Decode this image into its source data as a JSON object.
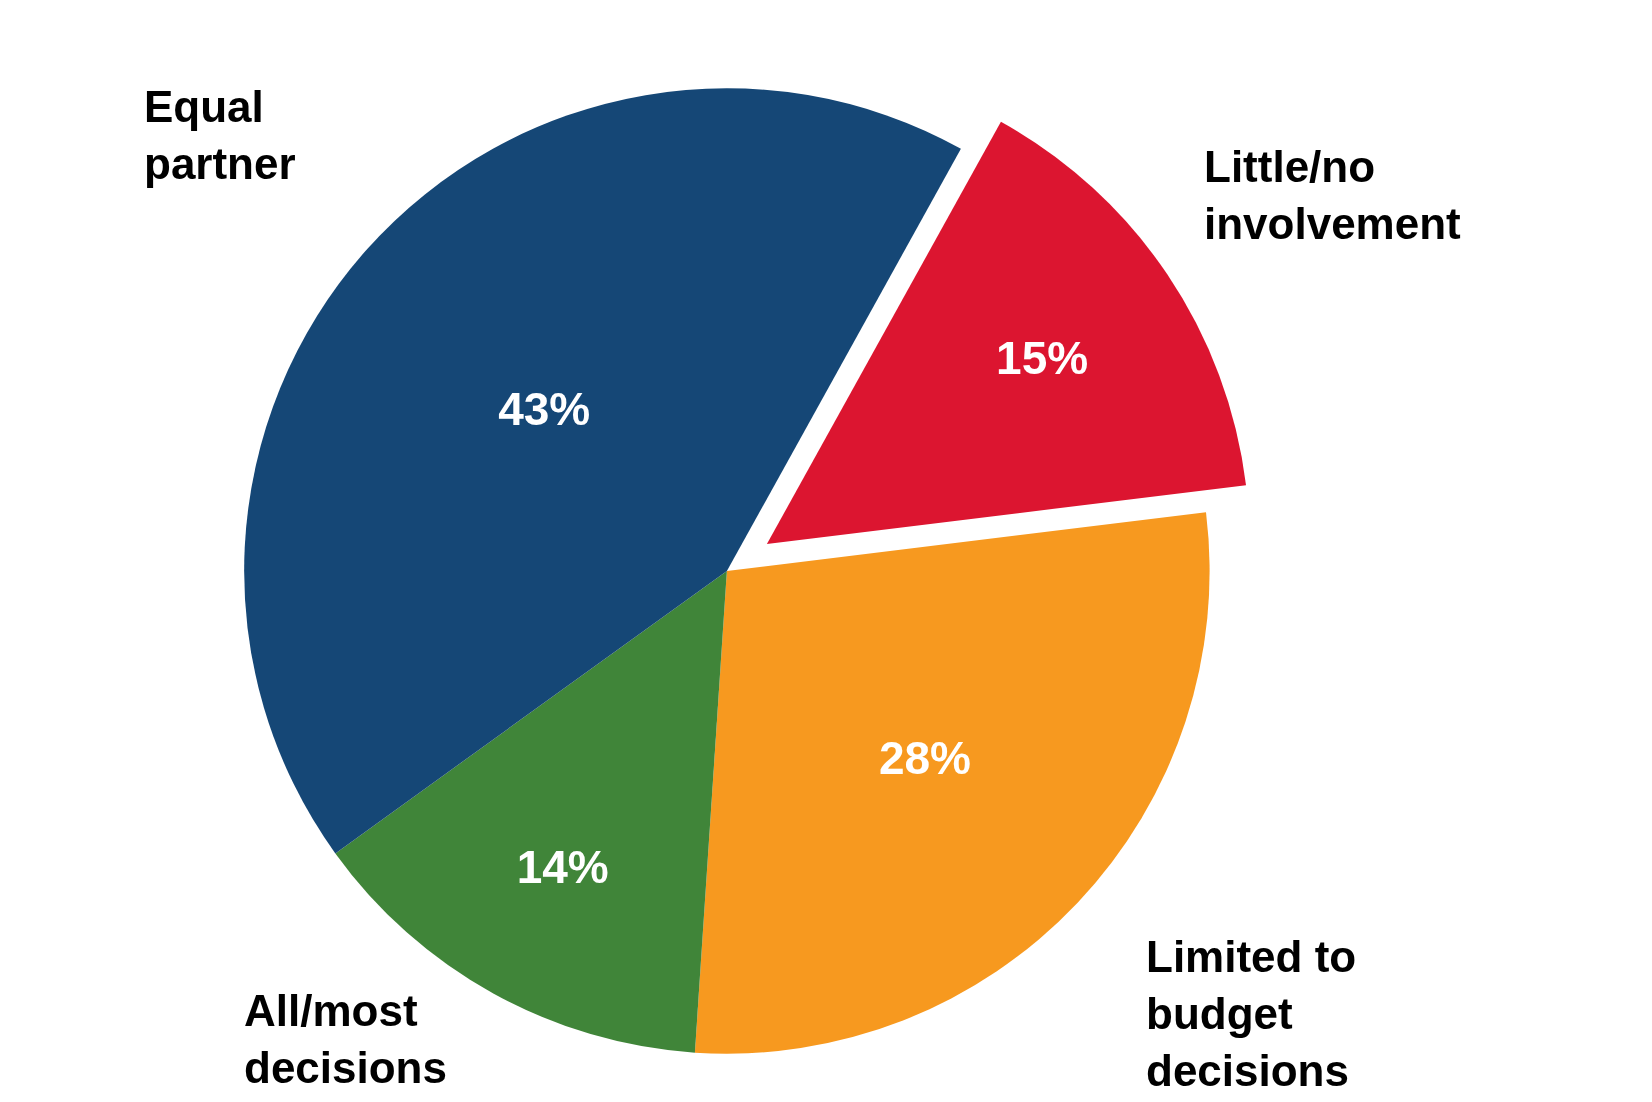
{
  "chart_data": {
    "type": "pie",
    "categories": [
      "Little/no involvement",
      "Limited to budget decisions",
      "All/most decisions",
      "Equal partner"
    ],
    "values": [
      15,
      28,
      14,
      43
    ],
    "colors": [
      "#dc1530",
      "#f7991f",
      "#408539",
      "#154776"
    ],
    "value_labels": [
      "15%",
      "28%",
      "14%",
      "43%"
    ],
    "legend": false
  }
}
